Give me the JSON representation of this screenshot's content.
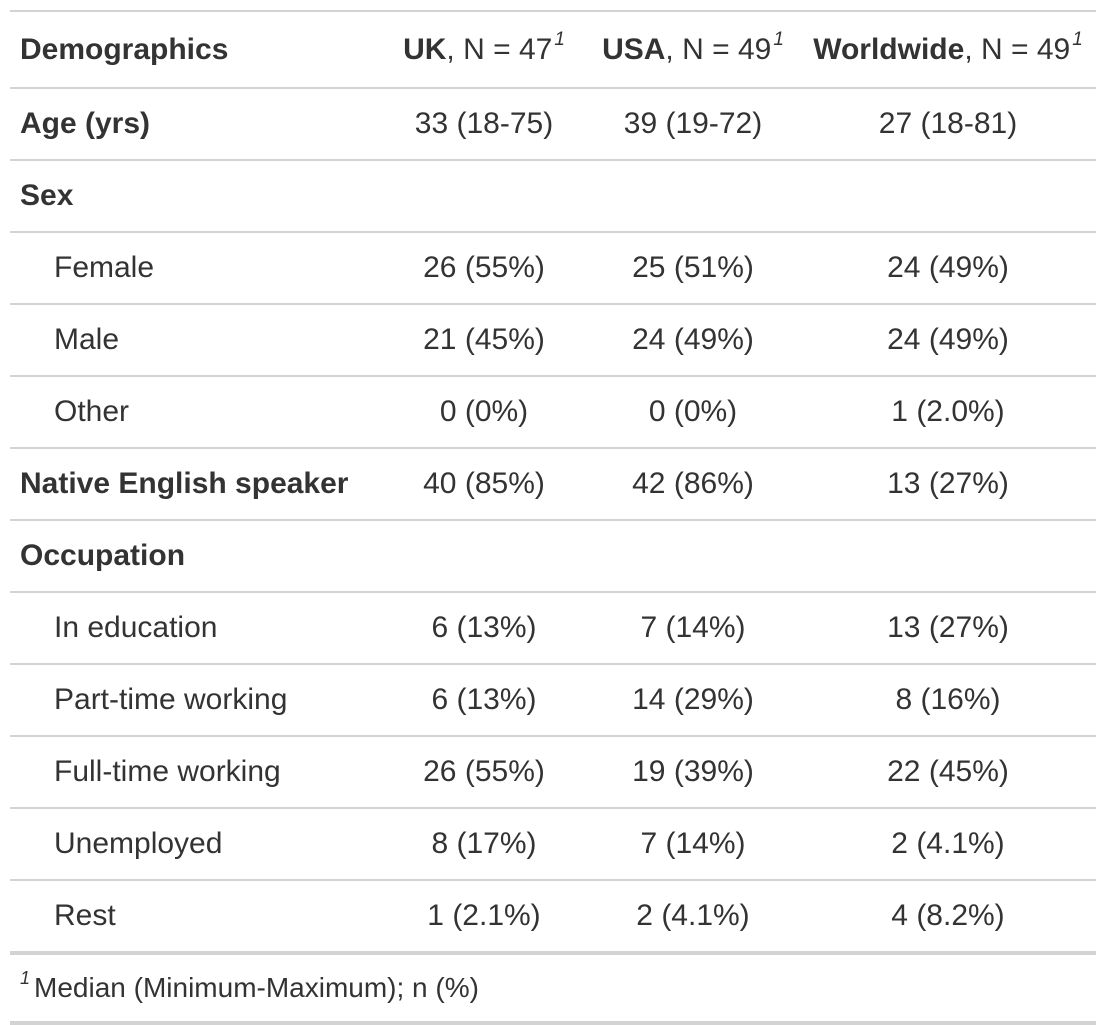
{
  "header": {
    "label": "Demographics",
    "columns": [
      {
        "name": "UK",
        "n_text": ", N = 47",
        "footnote_mark": "1"
      },
      {
        "name": "USA",
        "n_text": ", N = 49",
        "footnote_mark": "1"
      },
      {
        "name": "Worldwide",
        "n_text": ", N = 49",
        "footnote_mark": "1"
      }
    ]
  },
  "rows": [
    {
      "label": "Age (yrs)",
      "bold": true,
      "indent": false,
      "values": [
        "33 (18-75)",
        "39 (19-72)",
        "27 (18-81)"
      ]
    },
    {
      "label": "Sex",
      "bold": true,
      "indent": false,
      "values": [
        "",
        "",
        ""
      ]
    },
    {
      "label": "Female",
      "bold": false,
      "indent": true,
      "values": [
        "26 (55%)",
        "25 (51%)",
        "24 (49%)"
      ]
    },
    {
      "label": "Male",
      "bold": false,
      "indent": true,
      "values": [
        "21 (45%)",
        "24 (49%)",
        "24 (49%)"
      ]
    },
    {
      "label": "Other",
      "bold": false,
      "indent": true,
      "values": [
        "0 (0%)",
        "0 (0%)",
        "1 (2.0%)"
      ]
    },
    {
      "label": "Native English speaker",
      "bold": true,
      "indent": false,
      "values": [
        "40 (85%)",
        "42 (86%)",
        "13 (27%)"
      ]
    },
    {
      "label": "Occupation",
      "bold": true,
      "indent": false,
      "values": [
        "",
        "",
        ""
      ]
    },
    {
      "label": "In education",
      "bold": false,
      "indent": true,
      "values": [
        "6 (13%)",
        "7 (14%)",
        "13 (27%)"
      ]
    },
    {
      "label": "Part-time working",
      "bold": false,
      "indent": true,
      "values": [
        "6 (13%)",
        "14 (29%)",
        "8 (16%)"
      ]
    },
    {
      "label": "Full-time working",
      "bold": false,
      "indent": true,
      "values": [
        "26 (55%)",
        "19 (39%)",
        "22 (45%)"
      ]
    },
    {
      "label": "Unemployed",
      "bold": false,
      "indent": true,
      "values": [
        "8 (17%)",
        "7 (14%)",
        "2 (4.1%)"
      ]
    },
    {
      "label": "Rest",
      "bold": false,
      "indent": true,
      "values": [
        "1 (2.1%)",
        "2 (4.1%)",
        "4 (8.2%)"
      ]
    }
  ],
  "footnote": {
    "mark": "1",
    "text": "Median (Minimum-Maximum); n (%)"
  }
}
